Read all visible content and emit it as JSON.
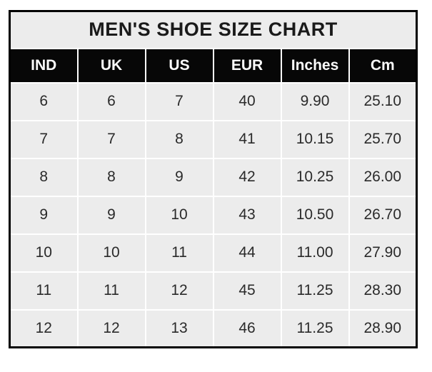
{
  "chart_data": {
    "type": "table",
    "title": "MEN'S SHOE SIZE CHART",
    "columns": [
      "IND",
      "UK",
      "US",
      "EUR",
      "Inches",
      "Cm"
    ],
    "rows": [
      [
        "6",
        "6",
        "7",
        "40",
        "9.90",
        "25.10"
      ],
      [
        "7",
        "7",
        "8",
        "41",
        "10.15",
        "25.70"
      ],
      [
        "8",
        "8",
        "9",
        "42",
        "10.25",
        "26.00"
      ],
      [
        "9",
        "9",
        "10",
        "43",
        "10.50",
        "26.70"
      ],
      [
        "10",
        "10",
        "11",
        "44",
        "11.00",
        "27.90"
      ],
      [
        "11",
        "11",
        "12",
        "45",
        "11.25",
        "28.30"
      ],
      [
        "12",
        "12",
        "13",
        "46",
        "11.25",
        "28.90"
      ]
    ]
  },
  "colors": {
    "page_bg": "#ffffff",
    "table_border": "#000000",
    "header_bg": "#070707",
    "header_text": "#fbfbfb",
    "cell_bg": "#ececec",
    "grid_line": "#ffffff",
    "title_text": "#1a1a1a",
    "cell_text": "#2a2a2a"
  }
}
